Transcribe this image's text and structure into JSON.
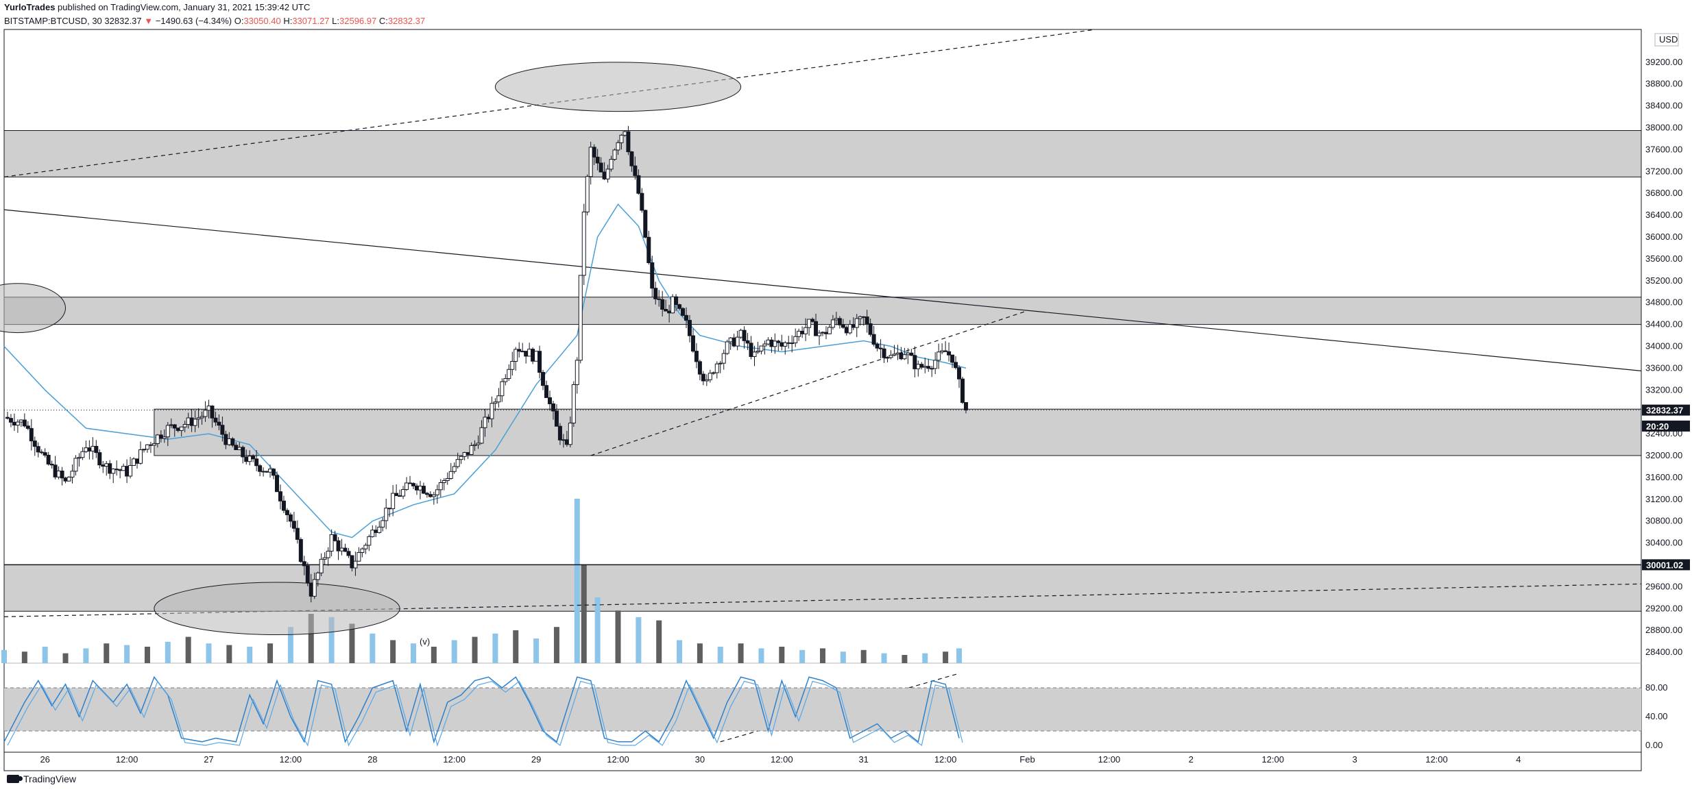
{
  "header": {
    "publisher": "YurloTrades",
    "published_text": "published on TradingView.com, January 31, 2021 15:39:42 UTC",
    "symbol": "BITSTAMP:BTCUSD, 30",
    "last": "32832.37",
    "down_arrow": "▼",
    "change": "−1490.63 (−4.34%)",
    "o_label": "O:",
    "o_value": "33050.40",
    "h_label": "H:",
    "h_value": "33071.27",
    "l_label": "L:",
    "l_value": "32596.97",
    "c_label": "C:",
    "c_value": "32832.37"
  },
  "footer": {
    "brand": "TradingView"
  },
  "colors": {
    "zone_fill": "#cfcfcf",
    "candle": "#131722",
    "ma_line": "#4a9fd8",
    "vol_up": "#8cc4ea",
    "vol_down": "#5f5f5f",
    "label_bg": "#131722"
  },
  "chart_data": {
    "type": "candlestick",
    "symbol": "BITSTAMP:BTCUSD",
    "interval": "30",
    "currency_label": "USD",
    "ylim": [
      28200,
      39800
    ],
    "y_ticks": [
      28400,
      28800,
      29200,
      29600,
      30000,
      30400,
      30800,
      31200,
      31600,
      32000,
      32400,
      32800,
      33200,
      33600,
      34000,
      34400,
      34800,
      35200,
      35600,
      36000,
      36400,
      36800,
      37200,
      37600,
      38000,
      38400,
      38800,
      39200
    ],
    "y_tick_labels": [
      "28400.00",
      "28800.00",
      "29200.00",
      "29600.00",
      "30000.00",
      "30400.00",
      "30800.00",
      "31200.00",
      "31600.00",
      "32000.00",
      "32400.00",
      "32800.00",
      "33200.00",
      "33600.00",
      "34000.00",
      "34400.00",
      "34800.00",
      "35200.00",
      "35600.00",
      "36000.00",
      "36400.00",
      "36800.00",
      "37200.00",
      "37600.00",
      "38000.00",
      "38400.00",
      "38800.00",
      "39200.00"
    ],
    "x_range_hours": [
      0,
      240
    ],
    "x_ticks": [
      {
        "label": "26",
        "t": 6
      },
      {
        "label": "12:00",
        "t": 18
      },
      {
        "label": "27",
        "t": 30
      },
      {
        "label": "12:00",
        "t": 42
      },
      {
        "label": "28",
        "t": 54
      },
      {
        "label": "12:00",
        "t": 66
      },
      {
        "label": "29",
        "t": 78
      },
      {
        "label": "12:00",
        "t": 90
      },
      {
        "label": "30",
        "t": 102
      },
      {
        "label": "12:00",
        "t": 114
      },
      {
        "label": "31",
        "t": 126
      },
      {
        "label": "12:00",
        "t": 138
      },
      {
        "label": "Feb",
        "t": 150
      },
      {
        "label": "12:00",
        "t": 162
      },
      {
        "label": "2",
        "t": 174
      },
      {
        "label": "12:00",
        "t": 186
      },
      {
        "label": "3",
        "t": 198
      },
      {
        "label": "12:00",
        "t": 210
      },
      {
        "label": "4",
        "t": 222
      }
    ],
    "close_path": [
      [
        0,
        32700
      ],
      [
        3,
        32600
      ],
      [
        6,
        31900
      ],
      [
        9,
        31500
      ],
      [
        12,
        32200
      ],
      [
        15,
        31800
      ],
      [
        18,
        31700
      ],
      [
        21,
        32200
      ],
      [
        24,
        32500
      ],
      [
        27,
        32600
      ],
      [
        30,
        32800
      ],
      [
        33,
        32200
      ],
      [
        36,
        31900
      ],
      [
        39,
        31700
      ],
      [
        42,
        30800
      ],
      [
        45,
        29500
      ],
      [
        48,
        30500
      ],
      [
        51,
        30000
      ],
      [
        54,
        30600
      ],
      [
        57,
        31200
      ],
      [
        60,
        31500
      ],
      [
        63,
        31300
      ],
      [
        66,
        31800
      ],
      [
        69,
        32200
      ],
      [
        72,
        33000
      ],
      [
        75,
        34000
      ],
      [
        78,
        33800
      ],
      [
        81,
        32500
      ],
      [
        82.5,
        32100
      ],
      [
        84,
        33800
      ],
      [
        84.5,
        35200
      ],
      [
        85,
        36500
      ],
      [
        86,
        37600
      ],
      [
        88,
        37000
      ],
      [
        89,
        37500
      ],
      [
        90,
        37800
      ],
      [
        91,
        38000
      ],
      [
        92,
        37300
      ],
      [
        93,
        36800
      ],
      [
        94,
        36000
      ],
      [
        95,
        35000
      ],
      [
        96,
        34800
      ],
      [
        97,
        34600
      ],
      [
        98,
        34800
      ],
      [
        100,
        34400
      ],
      [
        102,
        33600
      ],
      [
        103,
        33300
      ],
      [
        104,
        33600
      ],
      [
        106,
        34000
      ],
      [
        108,
        34200
      ],
      [
        110,
        33800
      ],
      [
        112,
        34100
      ],
      [
        114,
        34000
      ],
      [
        116,
        34200
      ],
      [
        118,
        34400
      ],
      [
        120,
        34200
      ],
      [
        122,
        34500
      ],
      [
        124,
        34300
      ],
      [
        126,
        34500
      ],
      [
        128,
        34000
      ],
      [
        130,
        33800
      ],
      [
        132,
        33900
      ],
      [
        134,
        33600
      ],
      [
        136,
        33700
      ],
      [
        138,
        33900
      ],
      [
        139,
        33800
      ],
      [
        140,
        33300
      ],
      [
        141,
        32832
      ]
    ],
    "series": [
      {
        "name": "MA",
        "type": "line",
        "points": [
          [
            0,
            34000
          ],
          [
            6,
            33200
          ],
          [
            12,
            32500
          ],
          [
            18,
            32400
          ],
          [
            24,
            32300
          ],
          [
            30,
            32400
          ],
          [
            36,
            32200
          ],
          [
            42,
            31400
          ],
          [
            45,
            31000
          ],
          [
            48,
            30600
          ],
          [
            51,
            30500
          ],
          [
            54,
            30800
          ],
          [
            60,
            31100
          ],
          [
            66,
            31300
          ],
          [
            72,
            32100
          ],
          [
            78,
            33300
          ],
          [
            84,
            34200
          ],
          [
            87,
            36000
          ],
          [
            90,
            36600
          ],
          [
            93,
            36200
          ],
          [
            96,
            35200
          ],
          [
            99,
            34600
          ],
          [
            102,
            34200
          ],
          [
            108,
            34000
          ],
          [
            114,
            33900
          ],
          [
            120,
            34000
          ],
          [
            126,
            34100
          ],
          [
            130,
            34000
          ],
          [
            134,
            33800
          ],
          [
            138,
            33700
          ],
          [
            141,
            33600
          ]
        ]
      },
      {
        "name": "Volume (v)",
        "type": "bar",
        "values": [
          [
            0,
            0.08,
            1
          ],
          [
            3,
            0.07,
            0
          ],
          [
            6,
            0.1,
            1
          ],
          [
            9,
            0.06,
            0
          ],
          [
            12,
            0.09,
            1
          ],
          [
            15,
            0.12,
            0
          ],
          [
            18,
            0.11,
            1
          ],
          [
            21,
            0.1,
            0
          ],
          [
            24,
            0.13,
            1
          ],
          [
            27,
            0.16,
            0
          ],
          [
            30,
            0.12,
            1
          ],
          [
            33,
            0.11,
            0
          ],
          [
            36,
            0.1,
            1
          ],
          [
            39,
            0.12,
            0
          ],
          [
            42,
            0.22,
            1
          ],
          [
            45,
            0.3,
            0
          ],
          [
            48,
            0.28,
            1
          ],
          [
            51,
            0.24,
            0
          ],
          [
            54,
            0.18,
            1
          ],
          [
            57,
            0.14,
            0
          ],
          [
            60,
            0.12,
            1
          ],
          [
            63,
            0.1,
            0
          ],
          [
            66,
            0.14,
            1
          ],
          [
            69,
            0.16,
            0
          ],
          [
            72,
            0.18,
            1
          ],
          [
            75,
            0.2,
            0
          ],
          [
            78,
            0.15,
            1
          ],
          [
            81,
            0.22,
            0
          ],
          [
            84,
            1.0,
            1
          ],
          [
            85,
            0.6,
            0
          ],
          [
            87,
            0.4,
            1
          ],
          [
            90,
            0.32,
            0
          ],
          [
            93,
            0.28,
            1
          ],
          [
            96,
            0.26,
            0
          ],
          [
            99,
            0.14,
            1
          ],
          [
            102,
            0.12,
            0
          ],
          [
            105,
            0.1,
            1
          ],
          [
            108,
            0.12,
            0
          ],
          [
            111,
            0.09,
            1
          ],
          [
            114,
            0.1,
            0
          ],
          [
            117,
            0.08,
            1
          ],
          [
            120,
            0.09,
            0
          ],
          [
            123,
            0.07,
            1
          ],
          [
            126,
            0.08,
            0
          ],
          [
            129,
            0.06,
            1
          ],
          [
            132,
            0.05,
            0
          ],
          [
            135,
            0.06,
            1
          ],
          [
            138,
            0.07,
            0
          ],
          [
            140,
            0.09,
            1
          ]
        ]
      },
      {
        "name": "Stoch RSI",
        "type": "line",
        "ylim": [
          0,
          100
        ],
        "y_ticks": [
          0,
          40,
          80
        ],
        "y_tick_labels": [
          "0.00",
          "40.00",
          "80.00"
        ],
        "band": [
          20,
          80
        ],
        "points": [
          [
            0,
            5
          ],
          [
            3,
            60
          ],
          [
            5,
            90
          ],
          [
            7,
            55
          ],
          [
            9,
            85
          ],
          [
            11,
            40
          ],
          [
            13,
            90
          ],
          [
            16,
            60
          ],
          [
            18,
            85
          ],
          [
            20,
            45
          ],
          [
            22,
            95
          ],
          [
            24,
            70
          ],
          [
            26,
            10
          ],
          [
            29,
            5
          ],
          [
            31,
            10
          ],
          [
            34,
            5
          ],
          [
            36,
            70
          ],
          [
            38,
            30
          ],
          [
            40,
            90
          ],
          [
            42,
            40
          ],
          [
            44,
            5
          ],
          [
            46,
            90
          ],
          [
            48,
            85
          ],
          [
            50,
            5
          ],
          [
            52,
            40
          ],
          [
            54,
            80
          ],
          [
            57,
            90
          ],
          [
            59,
            20
          ],
          [
            61,
            85
          ],
          [
            63,
            5
          ],
          [
            65,
            60
          ],
          [
            67,
            70
          ],
          [
            69,
            90
          ],
          [
            71,
            95
          ],
          [
            73,
            80
          ],
          [
            75,
            95
          ],
          [
            77,
            60
          ],
          [
            79,
            20
          ],
          [
            81,
            5
          ],
          [
            84,
            95
          ],
          [
            86,
            90
          ],
          [
            88,
            10
          ],
          [
            90,
            5
          ],
          [
            92,
            5
          ],
          [
            94,
            20
          ],
          [
            96,
            5
          ],
          [
            98,
            40
          ],
          [
            100,
            90
          ],
          [
            102,
            50
          ],
          [
            104,
            10
          ],
          [
            106,
            60
          ],
          [
            108,
            95
          ],
          [
            110,
            90
          ],
          [
            112,
            20
          ],
          [
            114,
            90
          ],
          [
            116,
            40
          ],
          [
            118,
            95
          ],
          [
            120,
            90
          ],
          [
            122,
            80
          ],
          [
            124,
            10
          ],
          [
            126,
            20
          ],
          [
            128,
            30
          ],
          [
            130,
            10
          ],
          [
            132,
            20
          ],
          [
            134,
            5
          ],
          [
            136,
            90
          ],
          [
            138,
            85
          ],
          [
            140,
            10
          ]
        ]
      }
    ],
    "zones": [
      {
        "name": "resistance-zone-top",
        "y_range": [
          37100,
          37950
        ],
        "x_from": 0
      },
      {
        "name": "resistance-zone-mid",
        "y_range": [
          34400,
          34900
        ],
        "x_from": 0
      },
      {
        "name": "support-zone-current",
        "y_range": [
          32000,
          32850
        ],
        "x_from": 22
      },
      {
        "name": "support-zone-bottom",
        "y_range": [
          29150,
          30000
        ],
        "x_from": 0
      }
    ],
    "horizontal_lines": [
      {
        "name": "last-price-line",
        "y": 32832.37,
        "style": "dotted"
      },
      {
        "name": "level-30001-line",
        "y": 30001.02,
        "style": "solid"
      }
    ],
    "trend_lines": [
      {
        "name": "upper-dashed-trend",
        "from": [
          0,
          37100
        ],
        "to": [
          160,
          39800
        ],
        "style": "dashed"
      },
      {
        "name": "descending-resistance",
        "from": [
          0,
          36500
        ],
        "to": [
          240,
          33550
        ],
        "style": "solid"
      },
      {
        "name": "rising-support-dashed",
        "from": [
          86,
          32000
        ],
        "to": [
          150,
          34650
        ],
        "style": "dashed"
      },
      {
        "name": "lower-dashed-trend",
        "from": [
          0,
          29050
        ],
        "to": [
          240,
          29650
        ],
        "style": "dashed"
      },
      {
        "name": "stoch-divergence-dashed",
        "from": [
          105,
          5
        ],
        "to": [
          140,
          100
        ],
        "style": "dashed",
        "pane": "oscillator"
      }
    ],
    "ellipses": [
      {
        "name": "top-ellipse",
        "center": [
          90,
          38750
        ],
        "rx_hours": 18,
        "ry_price": 450
      },
      {
        "name": "left-ellipse",
        "center": [
          2,
          34700
        ],
        "rx_hours": 7,
        "ry_price": 450
      },
      {
        "name": "bottom-ellipse",
        "center": [
          40,
          29200
        ],
        "rx_hours": 18,
        "ry_price": 480
      }
    ],
    "price_labels": [
      {
        "name": "last-price-label",
        "y": 32832.37,
        "text": "32832.37"
      },
      {
        "name": "countdown-label",
        "y": 32540,
        "text": "20:20"
      },
      {
        "name": "level-label",
        "y": 30001.02,
        "text": "30001.02"
      }
    ]
  }
}
